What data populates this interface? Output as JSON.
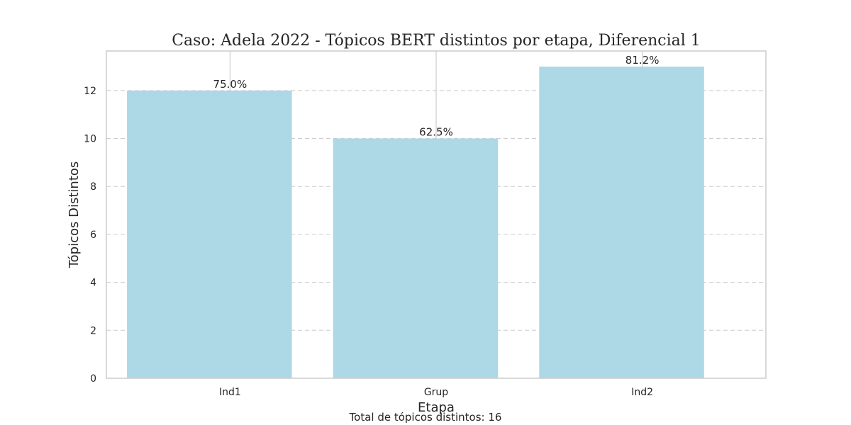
{
  "chart_data": {
    "type": "bar",
    "title": "Caso: Adela 2022 - Tópicos BERT distintos por etapa, Diferencial 1",
    "xlabel": "Etapa",
    "ylabel": "Tópicos Distintos",
    "categories": [
      "Ind1",
      "Grup",
      "Ind2"
    ],
    "values": [
      12,
      10,
      13
    ],
    "data_labels": [
      "75.0%",
      "62.5%",
      "81.2%"
    ],
    "ylim": [
      0,
      13.65
    ],
    "yticks": [
      0,
      2,
      4,
      6,
      8,
      10,
      12
    ],
    "grid": "y-dashed",
    "bar_color": "#add8e6",
    "footnote": "Total de tópicos distintos: 16"
  }
}
